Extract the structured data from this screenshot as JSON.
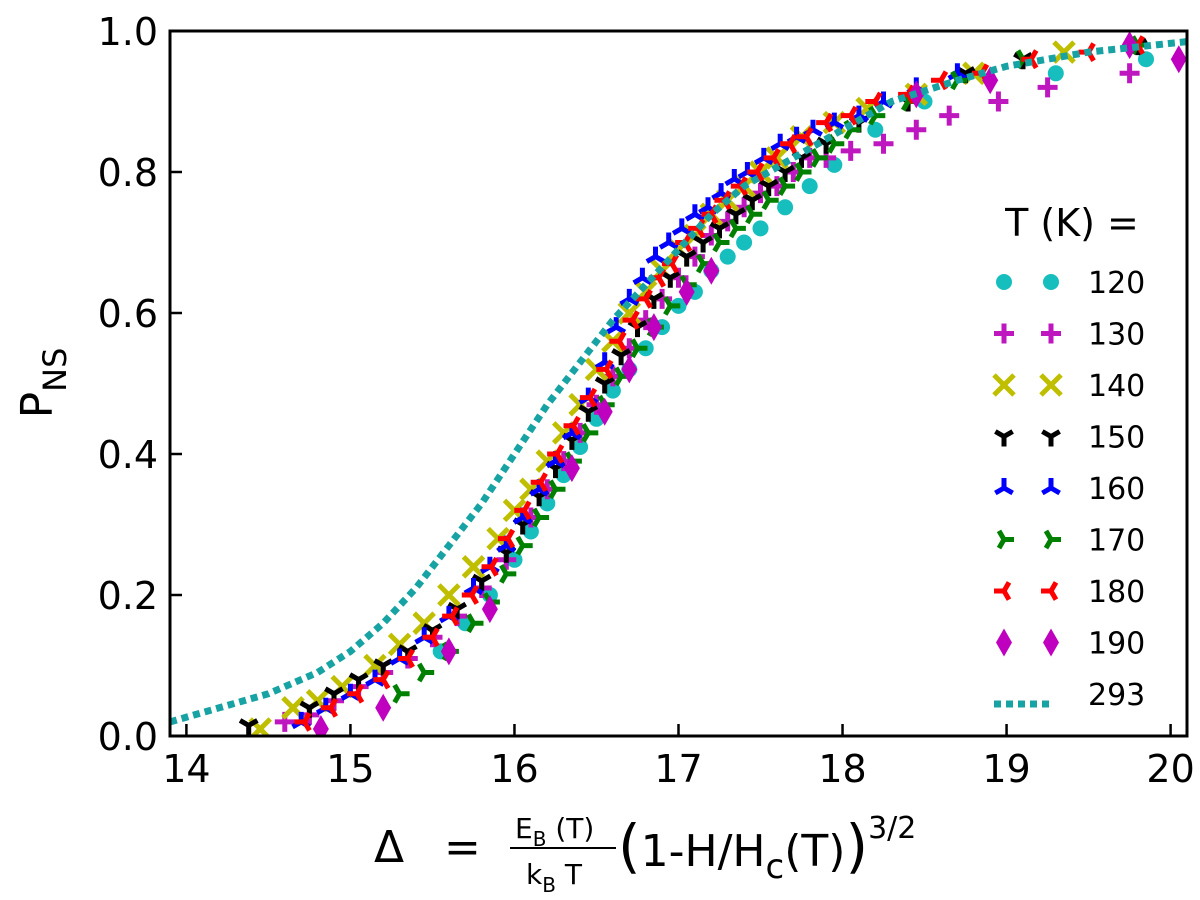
{
  "chart_data": {
    "type": "scatter",
    "xlim": [
      13.9,
      20.1
    ],
    "ylim": [
      0.0,
      1.0
    ],
    "x_ticks": [
      14,
      15,
      16,
      17,
      18,
      19,
      20
    ],
    "y_ticks": [
      0.0,
      0.2,
      0.4,
      0.6,
      0.8,
      1.0
    ],
    "x_tick_labels": [
      "14",
      "15",
      "16",
      "17",
      "18",
      "19",
      "20"
    ],
    "y_tick_labels": [
      "0.0",
      "0.2",
      "0.4",
      "0.6",
      "0.8",
      "1.0"
    ],
    "ylabel": {
      "main": "P",
      "sub": "NS"
    },
    "xlabel": {
      "delta": "Δ",
      "equals": "=",
      "frac_num": "E",
      "frac_num_sub": "B",
      "frac_num_rest": " (T)",
      "frac_den": "k",
      "frac_den_sub": "B",
      "frac_den_rest": " T",
      "lparen": "(",
      "expr1": "1-H/H",
      "expr_sub": "c",
      "expr2": "(T)",
      "rparen": ")",
      "power": "3/2"
    },
    "legend": {
      "title": "T (K) =",
      "position": "right"
    },
    "series": [
      {
        "name": "120",
        "marker": "circle",
        "color": "#17bebe",
        "x": [
          15.55,
          15.7,
          15.85,
          16.0,
          16.1,
          16.2,
          16.3,
          16.4,
          16.5,
          16.6,
          16.7,
          16.8,
          16.9,
          17.0,
          17.1,
          17.2,
          17.3,
          17.4,
          17.5,
          17.65,
          17.8,
          17.95,
          18.2,
          18.5,
          19.3,
          19.85
        ],
        "y": [
          0.12,
          0.16,
          0.2,
          0.25,
          0.29,
          0.33,
          0.37,
          0.41,
          0.45,
          0.49,
          0.52,
          0.55,
          0.58,
          0.61,
          0.63,
          0.66,
          0.68,
          0.7,
          0.72,
          0.75,
          0.78,
          0.81,
          0.86,
          0.9,
          0.94,
          0.96
        ]
      },
      {
        "name": "130",
        "marker": "plus",
        "color": "#bf17bf",
        "x": [
          14.6,
          14.75,
          14.9,
          15.05,
          15.2,
          15.35,
          15.5,
          15.65,
          15.8,
          15.95,
          16.1,
          16.2,
          16.3,
          16.4,
          16.5,
          16.6,
          16.7,
          16.8,
          16.9,
          17.0,
          17.1,
          17.2,
          17.3,
          17.4,
          17.5,
          17.6,
          17.7,
          17.8,
          17.9,
          18.05,
          18.25,
          18.45,
          18.65,
          18.95,
          19.25,
          19.75
        ],
        "y": [
          0.02,
          0.03,
          0.05,
          0.07,
          0.09,
          0.11,
          0.14,
          0.17,
          0.21,
          0.25,
          0.31,
          0.35,
          0.39,
          0.43,
          0.47,
          0.51,
          0.55,
          0.59,
          0.62,
          0.65,
          0.68,
          0.71,
          0.73,
          0.75,
          0.77,
          0.78,
          0.8,
          0.82,
          0.82,
          0.83,
          0.84,
          0.86,
          0.88,
          0.9,
          0.92,
          0.94
        ]
      },
      {
        "name": "140",
        "marker": "x",
        "color": "#bfbf00",
        "x": [
          14.45,
          14.65,
          14.8,
          14.95,
          15.15,
          15.3,
          15.45,
          15.6,
          15.75,
          15.9,
          16.0,
          16.1,
          16.2,
          16.3,
          16.4,
          16.5,
          16.6,
          16.7,
          16.8,
          16.9,
          17.0,
          17.1,
          17.2,
          17.3,
          17.4,
          17.5,
          17.6,
          17.75,
          17.95,
          18.15,
          18.45,
          18.8,
          19.35
        ],
        "y": [
          0.01,
          0.04,
          0.05,
          0.07,
          0.1,
          0.13,
          0.16,
          0.2,
          0.24,
          0.28,
          0.32,
          0.35,
          0.39,
          0.43,
          0.47,
          0.52,
          0.56,
          0.6,
          0.63,
          0.66,
          0.69,
          0.71,
          0.74,
          0.76,
          0.78,
          0.8,
          0.82,
          0.85,
          0.87,
          0.89,
          0.91,
          0.94,
          0.97
        ]
      },
      {
        "name": "150",
        "marker": "tri_down",
        "color": "#000000",
        "x": [
          14.38,
          14.75,
          14.9,
          15.05,
          15.2,
          15.35,
          15.5,
          15.65,
          15.8,
          15.95,
          16.05,
          16.15,
          16.25,
          16.35,
          16.45,
          16.55,
          16.65,
          16.75,
          16.85,
          16.95,
          17.05,
          17.15,
          17.25,
          17.35,
          17.45,
          17.55,
          17.65,
          17.75,
          17.9,
          18.1,
          18.4,
          18.75,
          19.1,
          19.8
        ],
        "y": [
          0.015,
          0.04,
          0.06,
          0.08,
          0.1,
          0.12,
          0.15,
          0.18,
          0.22,
          0.26,
          0.3,
          0.34,
          0.38,
          0.42,
          0.46,
          0.5,
          0.54,
          0.58,
          0.62,
          0.65,
          0.68,
          0.7,
          0.72,
          0.74,
          0.76,
          0.78,
          0.8,
          0.82,
          0.84,
          0.87,
          0.9,
          0.94,
          0.96,
          0.98
        ]
      },
      {
        "name": "160",
        "marker": "tri_up",
        "color": "#0000ff",
        "x": [
          14.7,
          14.85,
          15.0,
          15.15,
          15.3,
          15.45,
          15.6,
          15.75,
          15.85,
          15.95,
          16.05,
          16.15,
          16.25,
          16.35,
          16.45,
          16.55,
          16.62,
          16.7,
          16.78,
          16.86,
          16.94,
          17.02,
          17.1,
          17.18,
          17.26,
          17.34,
          17.42,
          17.52,
          17.62,
          17.72,
          17.82,
          17.95,
          18.1,
          18.25,
          18.45,
          18.7
        ],
        "y": [
          0.02,
          0.04,
          0.06,
          0.08,
          0.11,
          0.14,
          0.17,
          0.21,
          0.24,
          0.27,
          0.31,
          0.35,
          0.39,
          0.43,
          0.48,
          0.53,
          0.58,
          0.62,
          0.65,
          0.68,
          0.7,
          0.72,
          0.74,
          0.75,
          0.77,
          0.79,
          0.8,
          0.82,
          0.84,
          0.85,
          0.86,
          0.87,
          0.88,
          0.9,
          0.92,
          0.94
        ]
      },
      {
        "name": "170",
        "marker": "tri_right",
        "color": "#008000",
        "x": [
          15.3,
          15.45,
          15.6,
          15.75,
          15.85,
          15.95,
          16.05,
          16.15,
          16.25,
          16.35,
          16.45,
          16.55,
          16.65,
          16.75,
          16.85,
          16.95,
          17.05,
          17.15,
          17.25,
          17.35,
          17.45,
          17.55,
          17.65,
          17.75,
          17.85,
          17.95,
          18.05,
          18.2,
          18.4,
          18.7,
          19.1,
          19.8
        ],
        "y": [
          0.06,
          0.09,
          0.12,
          0.16,
          0.19,
          0.23,
          0.27,
          0.31,
          0.35,
          0.39,
          0.43,
          0.47,
          0.51,
          0.55,
          0.58,
          0.61,
          0.64,
          0.67,
          0.7,
          0.72,
          0.74,
          0.76,
          0.78,
          0.8,
          0.82,
          0.84,
          0.86,
          0.88,
          0.9,
          0.93,
          0.96,
          0.98
        ]
      },
      {
        "name": "180",
        "marker": "tri_left",
        "color": "#ff0000",
        "x": [
          14.72,
          14.88,
          15.04,
          15.2,
          15.35,
          15.5,
          15.62,
          15.74,
          15.86,
          15.96,
          16.06,
          16.16,
          16.26,
          16.36,
          16.46,
          16.56,
          16.64,
          16.72,
          16.8,
          16.88,
          16.96,
          17.04,
          17.12,
          17.2,
          17.28,
          17.38,
          17.48,
          17.58,
          17.68,
          17.78,
          17.9,
          18.05,
          18.2,
          18.4,
          18.6,
          18.85,
          19.15,
          19.5,
          19.8
        ],
        "y": [
          0.02,
          0.04,
          0.06,
          0.08,
          0.11,
          0.14,
          0.17,
          0.2,
          0.24,
          0.28,
          0.32,
          0.36,
          0.4,
          0.44,
          0.48,
          0.52,
          0.56,
          0.59,
          0.62,
          0.65,
          0.67,
          0.7,
          0.72,
          0.74,
          0.76,
          0.78,
          0.8,
          0.82,
          0.84,
          0.85,
          0.87,
          0.88,
          0.9,
          0.91,
          0.93,
          0.94,
          0.96,
          0.97,
          0.98
        ]
      },
      {
        "name": "190",
        "marker": "thin_diamond",
        "color": "#bf00bf",
        "x": [
          14.82,
          15.2,
          15.6,
          15.85,
          16.35,
          16.55,
          16.7,
          16.85,
          17.05,
          17.2,
          18.45,
          18.9,
          19.75,
          20.05
        ],
        "y": [
          0.01,
          0.04,
          0.12,
          0.18,
          0.38,
          0.46,
          0.52,
          0.58,
          0.63,
          0.66,
          0.91,
          0.93,
          0.98,
          0.96
        ]
      },
      {
        "name": "293",
        "marker": "dotted-line",
        "color": "#17a3a3",
        "x": [
          13.9,
          14.2,
          14.5,
          14.8,
          15.0,
          15.2,
          15.4,
          15.6,
          15.8,
          16.0,
          16.2,
          16.4,
          16.6,
          16.8,
          17.0,
          17.2,
          17.4,
          17.7,
          18.0,
          18.3,
          18.7,
          19.0,
          19.5,
          20.1
        ],
        "y": [
          0.02,
          0.04,
          0.06,
          0.09,
          0.12,
          0.16,
          0.21,
          0.27,
          0.33,
          0.4,
          0.47,
          0.53,
          0.59,
          0.64,
          0.69,
          0.74,
          0.78,
          0.82,
          0.86,
          0.9,
          0.93,
          0.95,
          0.97,
          0.985
        ]
      }
    ]
  }
}
